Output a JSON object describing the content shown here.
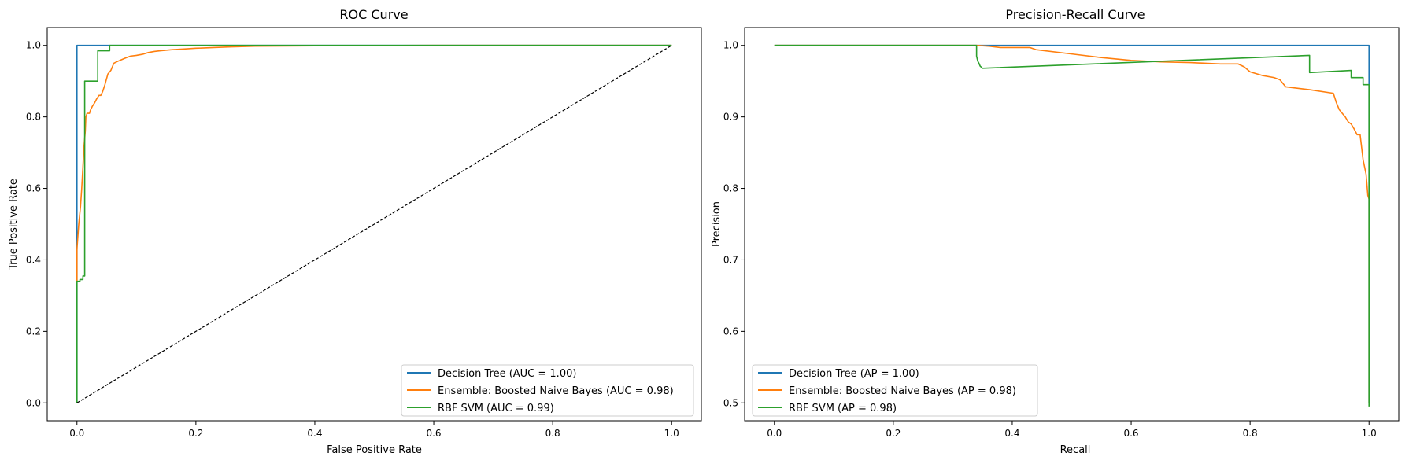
{
  "colors": {
    "blue": "#1f77b4",
    "orange": "#ff7f0e",
    "green": "#2ca02c",
    "chance": "#000000"
  },
  "chart_data": [
    {
      "type": "line",
      "title": "ROC Curve",
      "xlabel": "False Positive Rate",
      "ylabel": "True Positive Rate",
      "xlim": [
        -0.05,
        1.05
      ],
      "ylim": [
        -0.05,
        1.05
      ],
      "xticks": [
        "0.0",
        "0.2",
        "0.4",
        "0.6",
        "0.8",
        "1.0"
      ],
      "yticks": [
        "0.0",
        "0.2",
        "0.4",
        "0.6",
        "0.8",
        "1.0"
      ],
      "grid": false,
      "legend_position": "lower-right",
      "series": [
        {
          "name": "Decision Tree (AUC = 1.00)",
          "color": "#1f77b4",
          "x": [
            0,
            0,
            0,
            1
          ],
          "y": [
            0,
            0.43,
            1,
            1
          ]
        },
        {
          "name": "Ensemble: Boosted Naive Bayes (AUC = 0.98)",
          "color": "#ff7f0e",
          "x": [
            0,
            0,
            0.003,
            0.006,
            0.008,
            0.01,
            0.012,
            0.014,
            0.015,
            0.017,
            0.019,
            0.021,
            0.023,
            0.026,
            0.03,
            0.033,
            0.037,
            0.04,
            0.043,
            0.047,
            0.052,
            0.057,
            0.062,
            0.068,
            0.075,
            0.082,
            0.09,
            0.1,
            0.11,
            0.12,
            0.13,
            0.14,
            0.16,
            0.18,
            0.2,
            0.23,
            0.26,
            0.3,
            0.4,
            0.6,
            1
          ],
          "y": [
            0.34,
            0.43,
            0.5,
            0.55,
            0.6,
            0.66,
            0.72,
            0.76,
            0.8,
            0.81,
            0.81,
            0.81,
            0.82,
            0.83,
            0.84,
            0.85,
            0.86,
            0.86,
            0.87,
            0.89,
            0.92,
            0.93,
            0.95,
            0.955,
            0.96,
            0.965,
            0.97,
            0.972,
            0.975,
            0.98,
            0.983,
            0.985,
            0.988,
            0.99,
            0.992,
            0.994,
            0.996,
            0.998,
            0.999,
            1,
            1
          ]
        },
        {
          "name": "RBF SVM (AUC = 0.99)",
          "color": "#2ca02c",
          "x": [
            0,
            0,
            0.005,
            0.005,
            0.01,
            0.01,
            0.013,
            0.013,
            0.035,
            0.035,
            0.055,
            0.055,
            1
          ],
          "y": [
            0,
            0.34,
            0.34,
            0.345,
            0.345,
            0.355,
            0.355,
            0.9,
            0.9,
            0.985,
            0.985,
            1,
            1
          ]
        },
        {
          "name": "",
          "color": "#000000",
          "dashed": true,
          "x": [
            0,
            1
          ],
          "y": [
            0,
            1
          ]
        }
      ]
    },
    {
      "type": "line",
      "title": "Precision-Recall Curve",
      "xlabel": "Recall",
      "ylabel": "Precision",
      "xlim": [
        -0.05,
        1.05
      ],
      "ylim": [
        0.475,
        1.025
      ],
      "xticks": [
        "0.0",
        "0.2",
        "0.4",
        "0.6",
        "0.8",
        "1.0"
      ],
      "yticks": [
        "0.5",
        "0.6",
        "0.7",
        "0.8",
        "0.9",
        "1.0"
      ],
      "grid": false,
      "legend_position": "lower-left",
      "series": [
        {
          "name": "Decision Tree (AP = 1.00)",
          "color": "#1f77b4",
          "x": [
            0,
            1,
            1
          ],
          "y": [
            1,
            1,
            0.5
          ]
        },
        {
          "name": "Ensemble: Boosted Naive Bayes (AP = 0.98)",
          "color": "#ff7f0e",
          "x": [
            0,
            0.34,
            0.36,
            0.37,
            0.38,
            0.43,
            0.44,
            0.5,
            0.55,
            0.6,
            0.65,
            0.7,
            0.75,
            0.78,
            0.79,
            0.8,
            0.82,
            0.84,
            0.85,
            0.86,
            0.9,
            0.94,
            0.945,
            0.95,
            0.955,
            0.96,
            0.965,
            0.97,
            0.975,
            0.98,
            0.985,
            0.99,
            0.995,
            0.998,
            1,
            1
          ],
          "y": [
            1,
            1,
            0.999,
            0.998,
            0.997,
            0.997,
            0.994,
            0.988,
            0.983,
            0.979,
            0.977,
            0.976,
            0.974,
            0.974,
            0.97,
            0.963,
            0.958,
            0.955,
            0.952,
            0.942,
            0.938,
            0.933,
            0.92,
            0.91,
            0.905,
            0.9,
            0.893,
            0.89,
            0.883,
            0.875,
            0.875,
            0.84,
            0.82,
            0.79,
            0.785,
            0.5
          ]
        },
        {
          "name": "RBF SVM (AP = 0.98)",
          "color": "#2ca02c",
          "x": [
            0,
            0.34,
            0.34,
            0.342,
            0.344,
            0.346,
            0.35,
            0.9,
            0.9,
            0.97,
            0.97,
            0.985,
            0.99,
            0.99,
            1,
            1
          ],
          "y": [
            1,
            1,
            0.985,
            0.978,
            0.975,
            0.971,
            0.968,
            0.986,
            0.962,
            0.965,
            0.955,
            0.955,
            0.955,
            0.945,
            0.945,
            0.495
          ]
        }
      ]
    }
  ]
}
